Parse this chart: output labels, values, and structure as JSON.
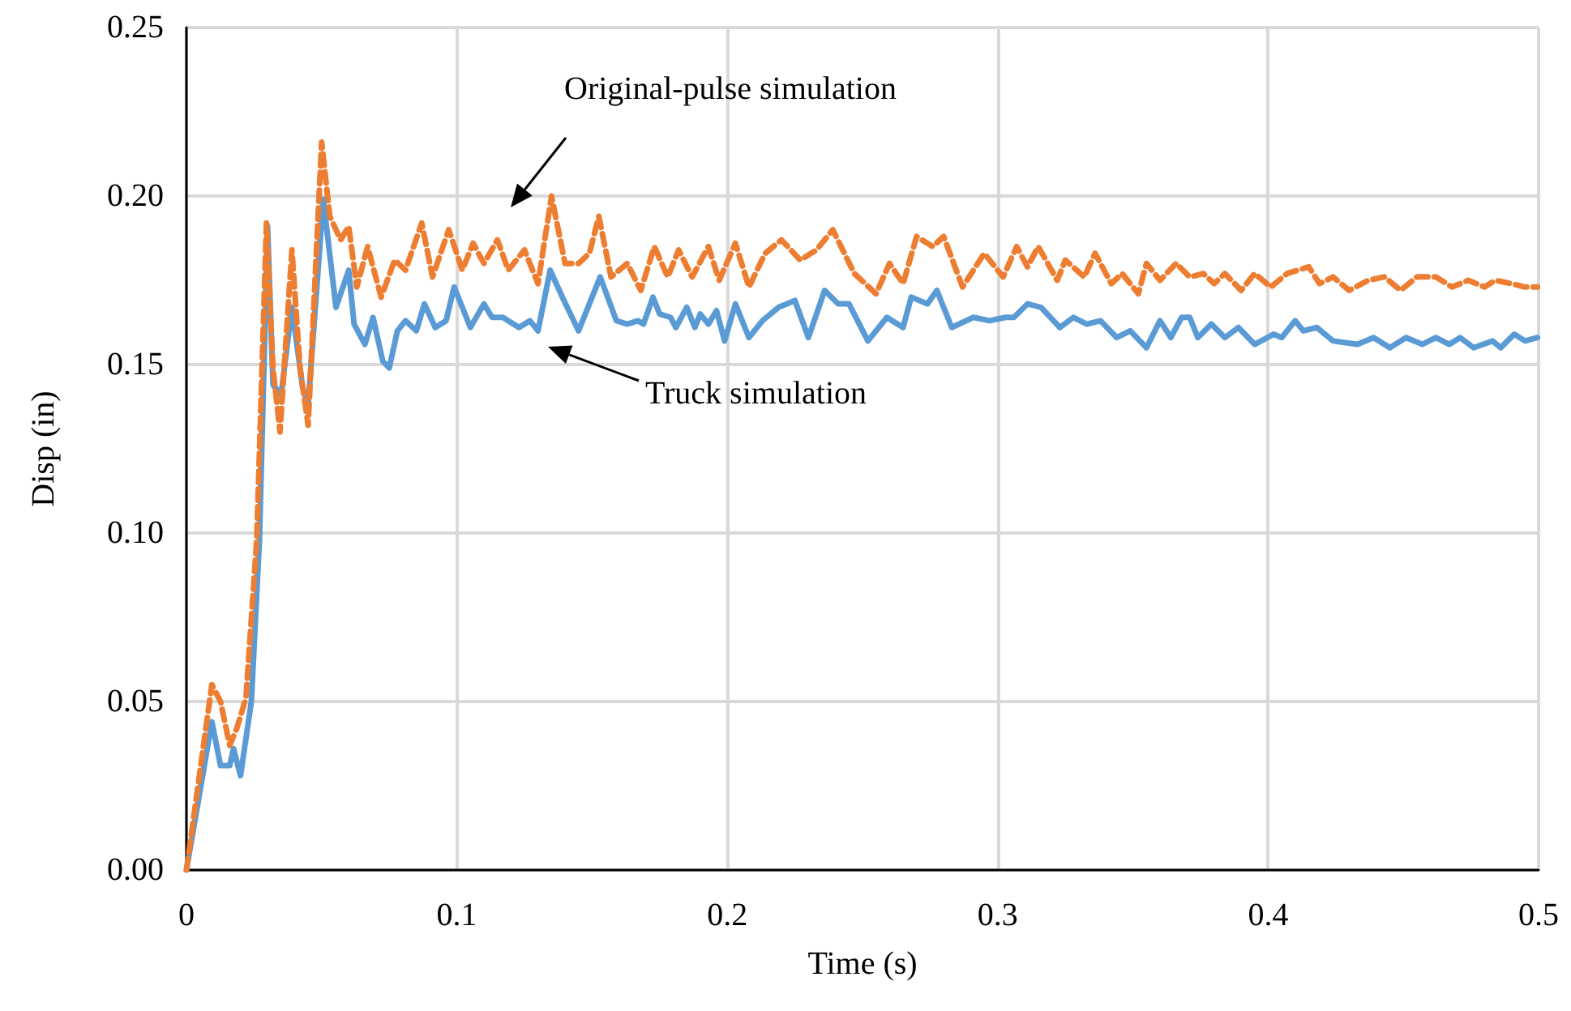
{
  "chart_data": {
    "type": "line",
    "xlabel": "Time (s)",
    "ylabel": "Disp (in)",
    "xlim": [
      0,
      0.5
    ],
    "xticks": [
      0,
      0.1,
      0.2,
      0.3,
      0.4,
      0.5
    ],
    "ylim": [
      0,
      0.25
    ],
    "yticks": [
      {
        "value": 0,
        "label": "0.00"
      },
      {
        "value": 0.05,
        "label": "0.05"
      },
      {
        "value": 0.1,
        "label": "0.10"
      },
      {
        "value": 0.15,
        "label": "0.15"
      },
      {
        "value": 0.2,
        "label": "0.20"
      },
      {
        "value": 0.25,
        "label": "0.25"
      }
    ],
    "grid": true,
    "marker": "none",
    "annotations": [
      "Original-pulse simulation",
      "Truck simulation"
    ],
    "series": [
      {
        "color": "#5b9bd5",
        "line_style": "solid",
        "x": [
          0,
          0.0094,
          0.0126,
          0.016,
          0.0174,
          0.02,
          0.024,
          0.027,
          0.03,
          0.032,
          0.035,
          0.039,
          0.043,
          0.045,
          0.0506,
          0.0553,
          0.06,
          0.062,
          0.066,
          0.069,
          0.0726,
          0.075,
          0.078,
          0.081,
          0.085,
          0.088,
          0.092,
          0.096,
          0.099,
          0.105,
          0.11,
          0.113,
          0.117,
          0.119,
          0.123,
          0.127,
          0.13,
          0.1345,
          0.139,
          0.145,
          0.153,
          0.159,
          0.163,
          0.167,
          0.169,
          0.1725,
          0.175,
          0.179,
          0.181,
          0.185,
          0.188,
          0.19,
          0.193,
          0.196,
          0.199,
          0.203,
          0.208,
          0.213,
          0.219,
          0.225,
          0.23,
          0.236,
          0.241,
          0.245,
          0.252,
          0.259,
          0.265,
          0.268,
          0.274,
          0.2775,
          0.283,
          0.291,
          0.297,
          0.303,
          0.306,
          0.311,
          0.316,
          0.323,
          0.328,
          0.333,
          0.338,
          0.344,
          0.349,
          0.355,
          0.36,
          0.364,
          0.368,
          0.371,
          0.374,
          0.379,
          0.384,
          0.389,
          0.395,
          0.402,
          0.405,
          0.41,
          0.413,
          0.418,
          0.424,
          0.433,
          0.439,
          0.445,
          0.451,
          0.457,
          0.462,
          0.467,
          0.471,
          0.476,
          0.483,
          0.486,
          0.491,
          0.495,
          0.4996
        ],
        "values": [
          0,
          0.044,
          0.031,
          0.031,
          0.036,
          0.028,
          0.05,
          0.098,
          0.191,
          0.144,
          0.141,
          0.167,
          0.143,
          0.138,
          0.199,
          0.167,
          0.178,
          0.162,
          0.156,
          0.164,
          0.151,
          0.149,
          0.16,
          0.163,
          0.16,
          0.168,
          0.161,
          0.163,
          0.173,
          0.161,
          0.168,
          0.164,
          0.164,
          0.163,
          0.161,
          0.163,
          0.16,
          0.178,
          0.17,
          0.16,
          0.176,
          0.163,
          0.162,
          0.163,
          0.162,
          0.17,
          0.165,
          0.164,
          0.161,
          0.167,
          0.161,
          0.165,
          0.162,
          0.166,
          0.157,
          0.168,
          0.158,
          0.163,
          0.167,
          0.169,
          0.158,
          0.172,
          0.168,
          0.168,
          0.157,
          0.164,
          0.161,
          0.17,
          0.168,
          0.172,
          0.161,
          0.164,
          0.163,
          0.164,
          0.164,
          0.168,
          0.167,
          0.161,
          0.164,
          0.162,
          0.163,
          0.158,
          0.16,
          0.155,
          0.163,
          0.158,
          0.164,
          0.164,
          0.158,
          0.162,
          0.158,
          0.161,
          0.156,
          0.159,
          0.158,
          0.163,
          0.16,
          0.161,
          0.157,
          0.156,
          0.158,
          0.155,
          0.158,
          0.156,
          0.158,
          0.156,
          0.158,
          0.155,
          0.157,
          0.155,
          0.159,
          0.157,
          0.158
        ]
      },
      {
        "color": "#ed7d31",
        "line_style": "dashed",
        "x": [
          0,
          0.0094,
          0.0126,
          0.016,
          0.0186,
          0.022,
          0.026,
          0.0296,
          0.032,
          0.0346,
          0.039,
          0.042,
          0.045,
          0.05,
          0.053,
          0.057,
          0.06,
          0.063,
          0.067,
          0.072,
          0.077,
          0.081,
          0.087,
          0.091,
          0.097,
          0.102,
          0.106,
          0.11,
          0.115,
          0.119,
          0.125,
          0.13,
          0.135,
          0.14,
          0.145,
          0.149,
          0.1525,
          0.157,
          0.163,
          0.168,
          0.173,
          0.178,
          0.182,
          0.187,
          0.193,
          0.197,
          0.203,
          0.208,
          0.214,
          0.22,
          0.227,
          0.233,
          0.239,
          0.247,
          0.255,
          0.26,
          0.265,
          0.27,
          0.276,
          0.28,
          0.287,
          0.295,
          0.302,
          0.307,
          0.311,
          0.315,
          0.322,
          0.325,
          0.332,
          0.336,
          0.342,
          0.346,
          0.352,
          0.355,
          0.36,
          0.366,
          0.371,
          0.376,
          0.38,
          0.384,
          0.39,
          0.395,
          0.401,
          0.407,
          0.415,
          0.419,
          0.424,
          0.43,
          0.437,
          0.443,
          0.449,
          0.455,
          0.462,
          0.468,
          0.474,
          0.48,
          0.484,
          0.49,
          0.495,
          0.4996
        ],
        "values": [
          0,
          0.055,
          0.05,
          0.037,
          0.042,
          0.051,
          0.098,
          0.192,
          0.149,
          0.13,
          0.184,
          0.149,
          0.132,
          0.216,
          0.194,
          0.187,
          0.191,
          0.173,
          0.185,
          0.17,
          0.181,
          0.178,
          0.192,
          0.176,
          0.19,
          0.178,
          0.186,
          0.18,
          0.187,
          0.178,
          0.184,
          0.174,
          0.2,
          0.18,
          0.18,
          0.183,
          0.194,
          0.176,
          0.18,
          0.172,
          0.185,
          0.176,
          0.184,
          0.176,
          0.185,
          0.175,
          0.186,
          0.173,
          0.183,
          0.187,
          0.181,
          0.184,
          0.19,
          0.177,
          0.171,
          0.18,
          0.174,
          0.188,
          0.185,
          0.188,
          0.173,
          0.183,
          0.176,
          0.185,
          0.179,
          0.185,
          0.175,
          0.181,
          0.176,
          0.183,
          0.174,
          0.177,
          0.171,
          0.18,
          0.175,
          0.18,
          0.176,
          0.177,
          0.174,
          0.177,
          0.172,
          0.177,
          0.173,
          0.177,
          0.179,
          0.174,
          0.176,
          0.172,
          0.175,
          0.176,
          0.172,
          0.176,
          0.176,
          0.173,
          0.175,
          0.173,
          0.175,
          0.174,
          0.173,
          0.173
        ]
      }
    ]
  }
}
